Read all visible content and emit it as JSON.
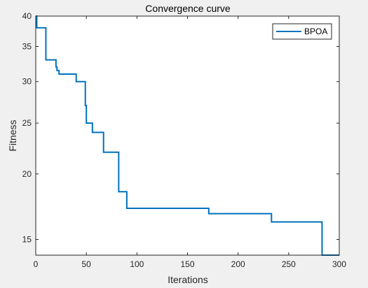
{
  "chart_data": {
    "type": "line",
    "title": "Convergence curve",
    "xlabel": "Iterations",
    "ylabel": "Fitness",
    "xlim": [
      0,
      300
    ],
    "ylim": [
      14,
      40
    ],
    "yscale": "log",
    "grid": false,
    "legend_position": "top-right",
    "xticks": [
      0,
      50,
      100,
      150,
      200,
      250,
      300
    ],
    "yticks": [
      15,
      20,
      25,
      30,
      35,
      40
    ],
    "series": [
      {
        "name": "BPOA",
        "color": "#0072BD",
        "style": "step",
        "x": [
          0,
          1,
          10,
          20,
          21,
          23,
          40,
          49,
          50,
          56,
          67,
          82,
          90,
          91,
          171,
          233,
          283,
          300
        ],
        "y": [
          40,
          38,
          33,
          32,
          31.5,
          31,
          30,
          27,
          25,
          24,
          22,
          18.5,
          17.2,
          17.2,
          16.8,
          16.2,
          14,
          14
        ]
      }
    ]
  }
}
